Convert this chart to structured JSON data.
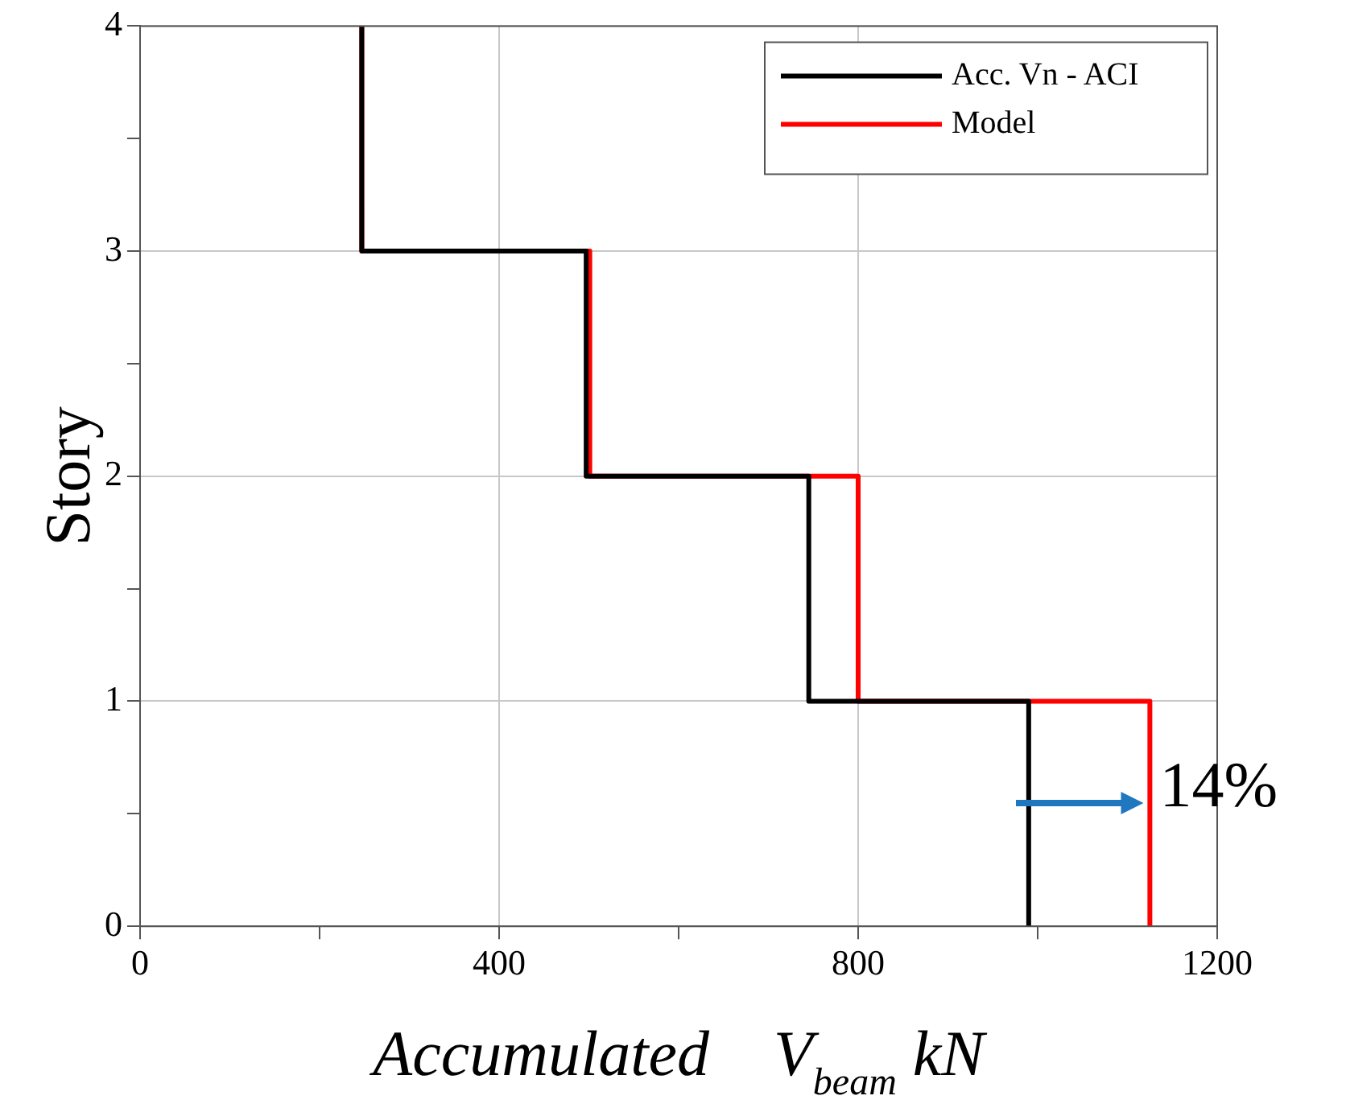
{
  "chart_data": {
    "type": "line",
    "xlabel": "Accumulated    V$_{beam}$ kN",
    "ylabel": "Story",
    "xlim": [
      0,
      1200
    ],
    "xticks": [
      0,
      {
        "value": 200,
        "label": null
      },
      400,
      {
        "value": 600,
        "label": null
      },
      800,
      {
        "value": 1000,
        "label": null
      },
      1200
    ],
    "ylim": [
      0,
      4
    ],
    "yticks": [
      0,
      {
        "value": 0.5,
        "label": null
      },
      1,
      {
        "value": 1.5,
        "label": null
      },
      2,
      {
        "value": 2.5,
        "label": null
      },
      3,
      {
        "value": 3.5,
        "label": null
      },
      4
    ],
    "grid": true,
    "legend": "top right",
    "marker": "none",
    "line_style": "solid",
    "series": [
      {
        "name": "Acc. Vn - ACI",
        "color": "#000000",
        "x": [
          247,
          247,
          497,
          497,
          745,
          745,
          990,
          990
        ],
        "values": [
          4,
          3,
          3,
          2,
          2,
          1,
          1,
          0
        ]
      },
      {
        "name": "Model",
        "color": "#ff0000",
        "x": [
          247,
          247,
          501,
          501,
          800,
          800,
          1125,
          1125
        ],
        "values": [
          4,
          3,
          3,
          2,
          2,
          1,
          1,
          0
        ]
      }
    ],
    "annotations": [
      {
        "text": "14%",
        "x": 1125,
        "y": 0.55
      }
    ]
  }
}
